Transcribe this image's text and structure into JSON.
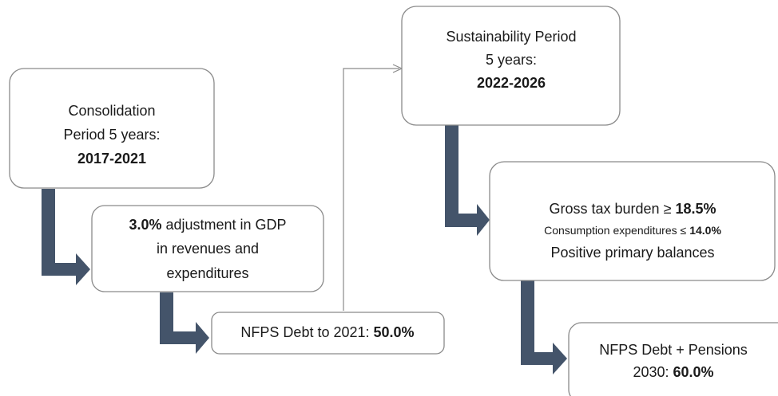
{
  "nodes": [
    {
      "line1": "Consolidation",
      "line2": "Period 5 years:",
      "line3": "2017-2021"
    },
    {
      "line1_bold": "3.0%",
      "line1": "adjustment in GDP",
      "line2": "in revenues and",
      "line3": "expenditures"
    },
    {
      "line1": "NFPS Debt to 2021:",
      "line1_bold": "50.0%"
    },
    {
      "line1": "Sustainability Period",
      "line2": "5 years:",
      "line3": "2022-2026"
    },
    {
      "line1": "Gross tax burden ≥",
      "line1_bold": "18.5%",
      "line2": "Consumption expenditures ≤",
      "line2_bold": "14.0%",
      "line3": "Positive primary balances"
    },
    {
      "line1": "NFPS Debt + Pensions",
      "line2": "2030:",
      "line2_bold": "60.0%"
    }
  ]
}
